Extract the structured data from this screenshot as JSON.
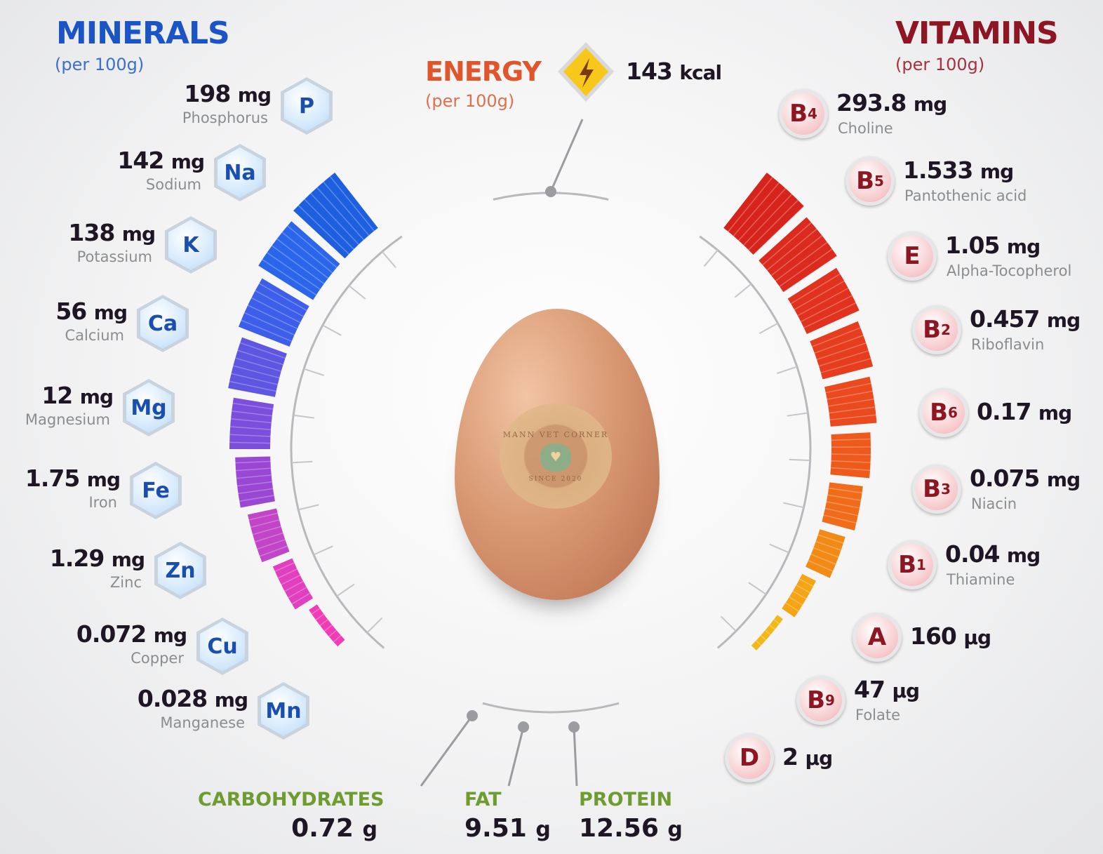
{
  "minerals": {
    "title": "MINERALS",
    "subtitle": "(per 100g)",
    "color": "#1b54c4",
    "items": [
      {
        "symbol": "P",
        "value": "198",
        "unit": "mg",
        "name": "Phosphorus"
      },
      {
        "symbol": "Na",
        "value": "142",
        "unit": "mg",
        "name": "Sodium"
      },
      {
        "symbol": "K",
        "value": "138",
        "unit": "mg",
        "name": "Potassium"
      },
      {
        "symbol": "Ca",
        "value": "56",
        "unit": "mg",
        "name": "Calcium"
      },
      {
        "symbol": "Mg",
        "value": "12",
        "unit": "mg",
        "name": "Magnesium"
      },
      {
        "symbol": "Fe",
        "value": "1.75",
        "unit": "mg",
        "name": "Iron"
      },
      {
        "symbol": "Zn",
        "value": "1.29",
        "unit": "mg",
        "name": "Zinc"
      },
      {
        "symbol": "Cu",
        "value": "0.072",
        "unit": "mg",
        "name": "Copper"
      },
      {
        "symbol": "Mn",
        "value": "0.028",
        "unit": "mg",
        "name": "Manganese"
      }
    ]
  },
  "vitamins": {
    "title": "VITAMINS",
    "subtitle": "(per 100g)",
    "color": "#8e1522",
    "items": [
      {
        "symbol": "B",
        "sub": "4",
        "value": "293.8",
        "unit": "mg",
        "name": "Choline"
      },
      {
        "symbol": "B",
        "sub": "5",
        "value": "1.533",
        "unit": "mg",
        "name": "Pantothenic acid"
      },
      {
        "symbol": "E",
        "sub": "",
        "value": "1.05",
        "unit": "mg",
        "name": "Alpha-Tocopherol"
      },
      {
        "symbol": "B",
        "sub": "2",
        "value": "0.457",
        "unit": "mg",
        "name": "Riboflavin"
      },
      {
        "symbol": "B",
        "sub": "6",
        "value": "0.17",
        "unit": "mg",
        "name": ""
      },
      {
        "symbol": "B",
        "sub": "3",
        "value": "0.075",
        "unit": "mg",
        "name": "Niacin"
      },
      {
        "symbol": "B",
        "sub": "1",
        "value": "0.04",
        "unit": "mg",
        "name": "Thiamine"
      },
      {
        "symbol": "A",
        "sub": "",
        "value": "160",
        "unit": "µg",
        "name": ""
      },
      {
        "symbol": "B",
        "sub": "9",
        "value": "47",
        "unit": "µg",
        "name": "Folate"
      },
      {
        "symbol": "D",
        "sub": "",
        "value": "2",
        "unit": "µg",
        "name": ""
      }
    ]
  },
  "energy": {
    "title": "ENERGY",
    "subtitle": "(per 100g)",
    "value": "143",
    "unit": "kcal",
    "color": "#e0552b",
    "icon": "lightning-icon"
  },
  "macros": [
    {
      "label": "CARBOHYDRATES",
      "value": "0.72",
      "unit": "g"
    },
    {
      "label": "FAT",
      "value": "9.51",
      "unit": "g"
    },
    {
      "label": "PROTEIN",
      "value": "12.56",
      "unit": "g"
    }
  ],
  "watermark": {
    "text": "MANN VET CORNER",
    "since": "SINCE 2020"
  }
}
